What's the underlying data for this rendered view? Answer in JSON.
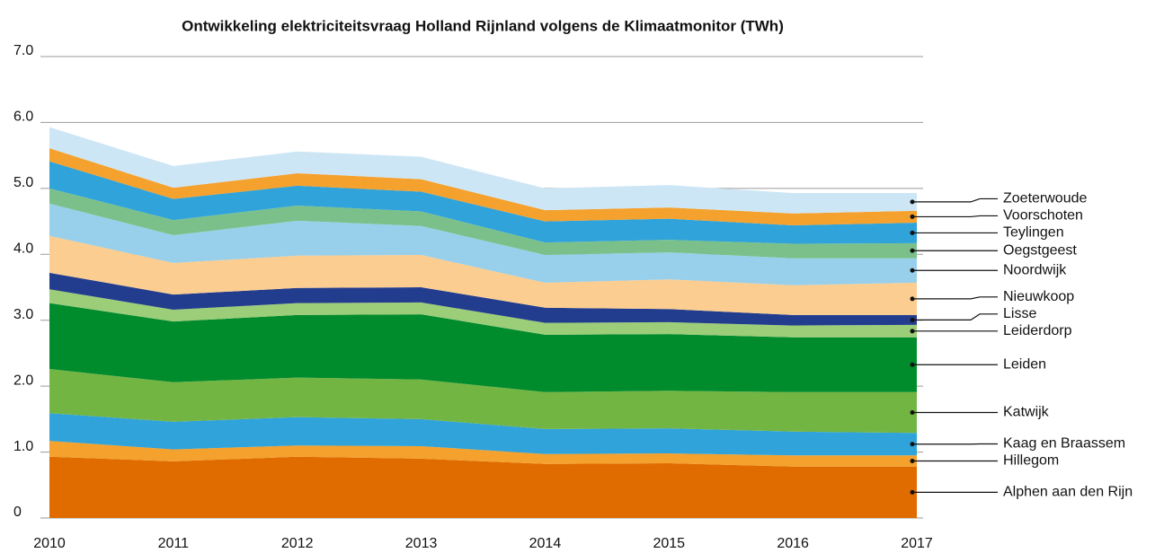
{
  "chart_data": {
    "type": "stacked_area",
    "title": "Ontwikkeling elektriciteitsvraag Holland Rijnland volgens de Klimaatmonitor (TWh)",
    "x": [
      2010,
      2011,
      2012,
      2013,
      2014,
      2015,
      2016,
      2017
    ],
    "xlim": [
      2010,
      2017
    ],
    "xticks": [
      2010,
      2011,
      2012,
      2013,
      2014,
      2015,
      2016,
      2017
    ],
    "ylim": [
      0,
      7
    ],
    "yticks": [
      0,
      {
        "value": 1,
        "label": "1.0"
      },
      {
        "value": 2,
        "label": "2.0"
      },
      {
        "value": 3,
        "label": "3.0"
      },
      {
        "value": 4,
        "label": "4.0"
      },
      {
        "value": 5,
        "label": "5.0"
      },
      {
        "value": 6,
        "label": "6.0"
      },
      {
        "value": 7,
        "label": "7.0"
      }
    ],
    "grid": true,
    "series": [
      {
        "name": "Alphen aan den Rijn",
        "color": "#e06c00",
        "values": [
          0.93,
          0.86,
          0.93,
          0.9,
          0.82,
          0.83,
          0.78,
          0.78
        ]
      },
      {
        "name": "Hillegom",
        "color": "#f4a12e",
        "values": [
          0.24,
          0.18,
          0.17,
          0.19,
          0.15,
          0.15,
          0.17,
          0.17
        ]
      },
      {
        "name": "Kaag en Braassem",
        "color": "#2fa3da",
        "values": [
          0.42,
          0.42,
          0.43,
          0.41,
          0.38,
          0.38,
          0.36,
          0.34
        ]
      },
      {
        "name": "Katwijk",
        "color": "#73b543",
        "values": [
          0.67,
          0.6,
          0.6,
          0.6,
          0.56,
          0.57,
          0.6,
          0.62
        ]
      },
      {
        "name": "Leiden",
        "color": "#008b2c",
        "values": [
          1.0,
          0.92,
          0.95,
          0.99,
          0.87,
          0.86,
          0.83,
          0.83
        ]
      },
      {
        "name": "Leiderdorp",
        "color": "#9ccd78",
        "values": [
          0.21,
          0.18,
          0.18,
          0.18,
          0.18,
          0.18,
          0.18,
          0.19
        ]
      },
      {
        "name": "Lisse",
        "color": "#233d8e",
        "values": [
          0.25,
          0.23,
          0.23,
          0.23,
          0.23,
          0.2,
          0.16,
          0.15
        ]
      },
      {
        "name": "Nieuwkoop",
        "color": "#fbcd90",
        "values": [
          0.56,
          0.48,
          0.49,
          0.49,
          0.38,
          0.45,
          0.45,
          0.49
        ]
      },
      {
        "name": "Noordwijk",
        "color": "#98cfea",
        "values": [
          0.49,
          0.42,
          0.53,
          0.44,
          0.42,
          0.41,
          0.41,
          0.37
        ]
      },
      {
        "name": "Oegstgeest",
        "color": "#7bc08a",
        "values": [
          0.23,
          0.23,
          0.23,
          0.22,
          0.19,
          0.19,
          0.22,
          0.23
        ]
      },
      {
        "name": "Teylingen",
        "color": "#2fa3da",
        "values": [
          0.41,
          0.32,
          0.3,
          0.3,
          0.32,
          0.32,
          0.28,
          0.31
        ]
      },
      {
        "name": "Voorschoten",
        "color": "#f4a12e",
        "values": [
          0.2,
          0.17,
          0.19,
          0.19,
          0.17,
          0.17,
          0.18,
          0.18
        ]
      },
      {
        "name": "Zoeterwoude",
        "color": "#cde6f5",
        "values": [
          0.32,
          0.33,
          0.33,
          0.34,
          0.33,
          0.34,
          0.31,
          0.27
        ]
      }
    ]
  }
}
